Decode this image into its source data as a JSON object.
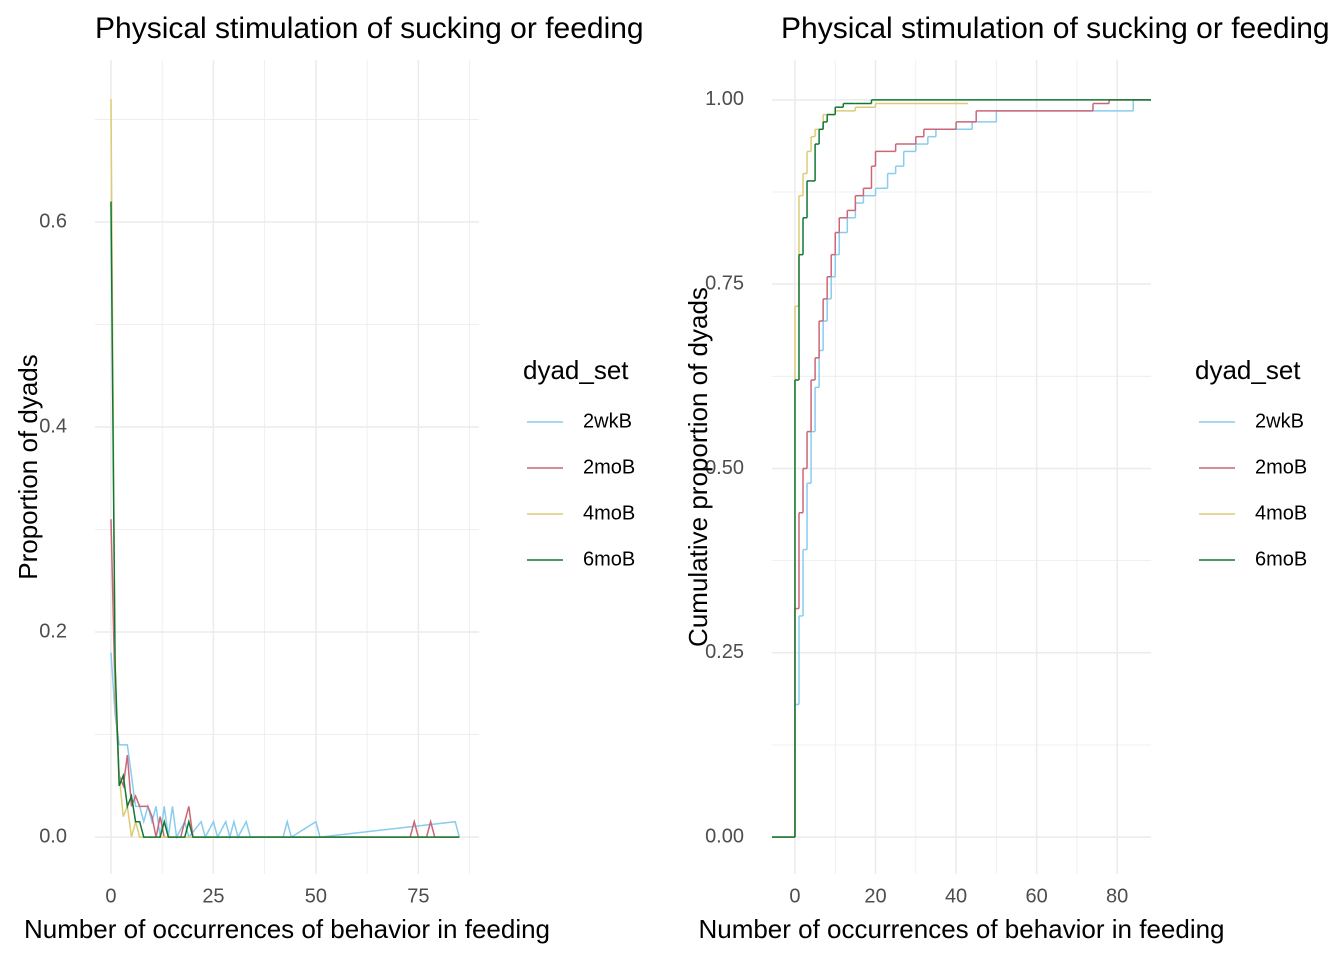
{
  "chart_data": [
    {
      "type": "line",
      "title": "Physical stimulation of sucking or feeding",
      "x_label": "Number of occurrences of behavior in feeding",
      "y_label": "Proportion of dyads",
      "legend_title": "dyad_set",
      "legend_position": "right",
      "grid": true,
      "xlim": [
        -3.9,
        89.8
      ],
      "ylim": [
        -0.036,
        0.758
      ],
      "xticks": [
        0,
        25,
        50,
        75
      ],
      "yticks": [
        {
          "value": 0,
          "label": "0.0"
        },
        0.2,
        0.4,
        0.6
      ],
      "minor_xticks": [
        12.5,
        37.5,
        62.5,
        87.5
      ],
      "minor_yticks": [
        0.1,
        0.3,
        0.5,
        0.7
      ],
      "series": [
        {
          "name": "2wkB",
          "color": "#88CCEE",
          "x": [
            0,
            1,
            2,
            3,
            4,
            5,
            6,
            7,
            8,
            9,
            10,
            11,
            12,
            13,
            14,
            15,
            16,
            18,
            19,
            22,
            23,
            25,
            26,
            28,
            29,
            30,
            31,
            33,
            34,
            42,
            43,
            44,
            50,
            51,
            84,
            85
          ],
          "values": [
            0.18,
            0.12,
            0.09,
            0.09,
            0.09,
            0.06,
            0.03,
            0.03,
            0.015,
            0.03,
            0.015,
            0.03,
            0,
            0.03,
            0,
            0.03,
            0,
            0.015,
            0,
            0.015,
            0,
            0.015,
            0,
            0.015,
            0,
            0.015,
            0,
            0.015,
            0,
            0,
            0.015,
            0,
            0.015,
            0,
            0.015,
            0
          ]
        },
        {
          "name": "2moB",
          "color": "#CC6677",
          "x": [
            0,
            1,
            2,
            3,
            4,
            5,
            6,
            7,
            8,
            9,
            10,
            11,
            12,
            13,
            17,
            19,
            20,
            73,
            74,
            75,
            77,
            78,
            79,
            85
          ],
          "values": [
            0.31,
            0.14,
            0.06,
            0.05,
            0.08,
            0.03,
            0.04,
            0.03,
            0.03,
            0.03,
            0.02,
            0,
            0.02,
            0,
            0,
            0.03,
            0,
            0,
            0.015,
            0,
            0,
            0.015,
            0,
            0
          ]
        },
        {
          "name": "4moB",
          "color": "#DDCC77",
          "x": [
            0,
            1,
            2,
            3,
            4,
            5,
            6,
            7,
            85
          ],
          "values": [
            0.72,
            0.15,
            0.06,
            0.02,
            0.03,
            0,
            0.015,
            0,
            0
          ]
        },
        {
          "name": "6moB",
          "color": "#117733",
          "x": [
            0,
            1,
            2,
            3,
            4,
            5,
            6,
            7,
            8,
            12,
            13,
            14,
            18,
            19,
            20,
            85
          ],
          "values": [
            0.62,
            0.17,
            0.05,
            0.06,
            0.03,
            0.04,
            0.015,
            0.015,
            0,
            0,
            0.015,
            0,
            0,
            0.015,
            0,
            0
          ]
        }
      ]
    },
    {
      "type": "step",
      "title": "Physical stimulation of sucking or feeding",
      "x_label": "Number of occurrences of behavior in feeding",
      "y_label": "Cumulative proportion of dyads",
      "legend_title": "dyad_set",
      "legend_position": "right",
      "grid": true,
      "xlim": [
        -5.7,
        88.4
      ],
      "ylim": [
        -0.05,
        1.054
      ],
      "xticks": [
        0,
        20,
        40,
        60,
        80
      ],
      "yticks": [
        {
          "value": 0,
          "label": "0.00"
        },
        0.25,
        {
          "value": 0.5,
          "label": "0.50"
        },
        0.75,
        {
          "value": 1,
          "label": "1.00"
        }
      ],
      "minor_xticks": [
        10,
        30,
        50,
        70
      ],
      "minor_yticks": [
        0.125,
        0.375,
        0.625,
        0.875
      ],
      "series": [
        {
          "name": "2wkB",
          "color": "#88CCEE",
          "x": [
            -5.7,
            0,
            1,
            2,
            3,
            4,
            5,
            6,
            7,
            8,
            9,
            10,
            11,
            13,
            15,
            17,
            20,
            23,
            25,
            27,
            30,
            33,
            35,
            44,
            50,
            84,
            88.4
          ],
          "values": [
            0,
            0.18,
            0.3,
            0.39,
            0.48,
            0.55,
            0.61,
            0.66,
            0.7,
            0.73,
            0.76,
            0.79,
            0.82,
            0.84,
            0.86,
            0.87,
            0.88,
            0.9,
            0.91,
            0.93,
            0.94,
            0.95,
            0.96,
            0.97,
            0.985,
            1,
            1
          ]
        },
        {
          "name": "2moB",
          "color": "#CC6677",
          "x": [
            -5.7,
            0,
            1,
            2,
            3,
            4,
            5,
            6,
            7,
            8,
            9,
            10,
            11,
            13,
            15,
            17,
            19,
            20,
            25,
            30,
            32,
            40,
            45,
            74,
            78,
            88.4
          ],
          "values": [
            0,
            0.31,
            0.44,
            0.5,
            0.55,
            0.62,
            0.65,
            0.7,
            0.73,
            0.76,
            0.79,
            0.82,
            0.84,
            0.85,
            0.87,
            0.88,
            0.91,
            0.93,
            0.94,
            0.95,
            0.96,
            0.97,
            0.985,
            0.995,
            1,
            1
          ]
        },
        {
          "name": "4moB",
          "color": "#DDCC77",
          "x": [
            -5.7,
            0,
            1,
            2,
            3,
            4,
            5,
            7,
            10,
            15,
            20,
            43
          ],
          "values": [
            0,
            0.72,
            0.87,
            0.9,
            0.93,
            0.95,
            0.96,
            0.98,
            0.985,
            0.99,
            0.995,
            0.995
          ]
        },
        {
          "name": "6moB",
          "color": "#117733",
          "x": [
            -5.7,
            0,
            1,
            2,
            3,
            4,
            5,
            6,
            7,
            8,
            10,
            12,
            15,
            19,
            88.4
          ],
          "values": [
            0,
            0.62,
            0.79,
            0.84,
            0.89,
            0.89,
            0.94,
            0.96,
            0.97,
            0.98,
            0.99,
            0.995,
            0.995,
            1,
            1
          ]
        }
      ]
    }
  ]
}
